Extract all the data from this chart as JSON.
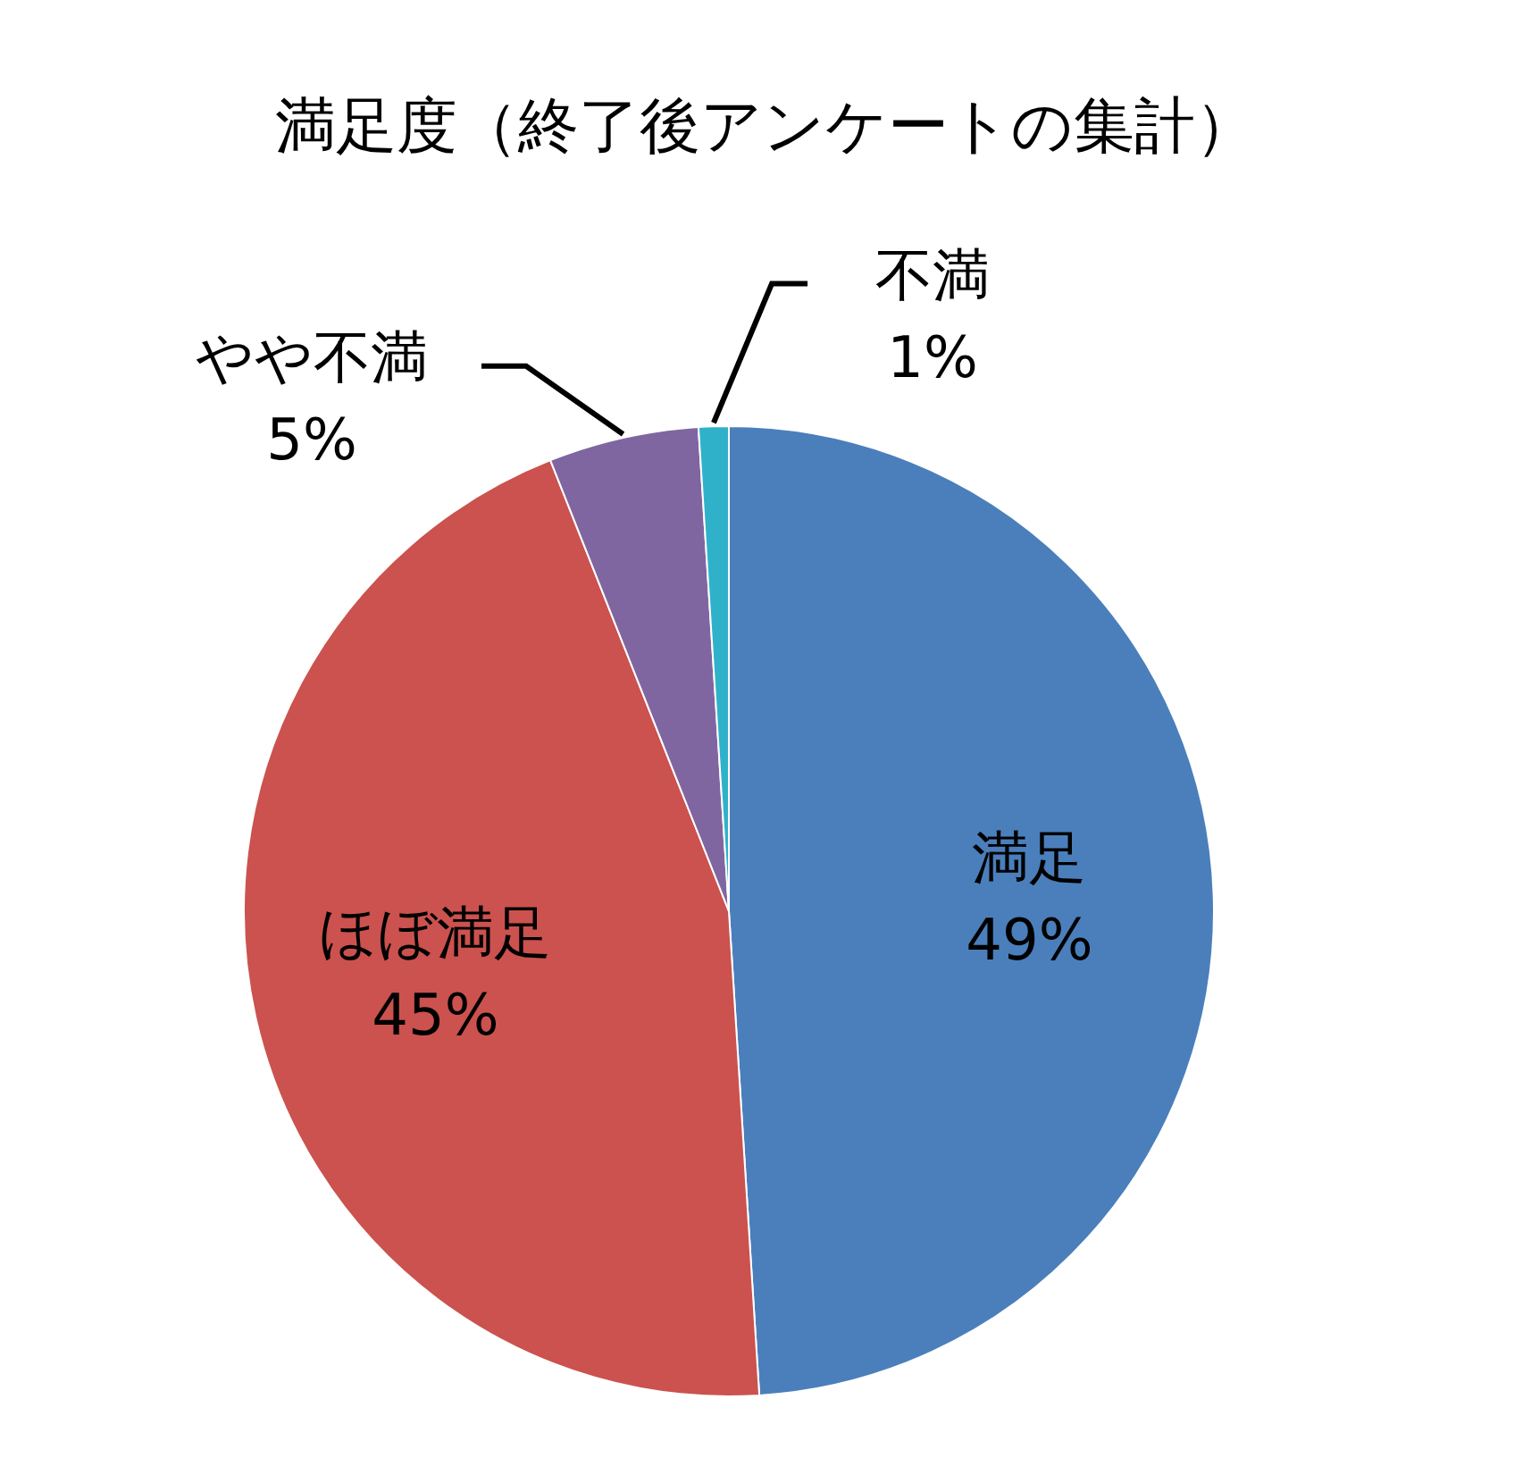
{
  "chart_data": {
    "type": "pie",
    "title": "満足度（終了後アンケートの集計）",
    "categories": [
      "満足",
      "ほぼ満足",
      "やや不満",
      "不満"
    ],
    "values": [
      49,
      45,
      5,
      1
    ],
    "value_labels": [
      "49%",
      "45%",
      "5%",
      "1%"
    ],
    "colors": [
      "#4a7fbb",
      "#cb524e",
      "#8066a1",
      "#2fb2c9"
    ],
    "legend": false
  }
}
